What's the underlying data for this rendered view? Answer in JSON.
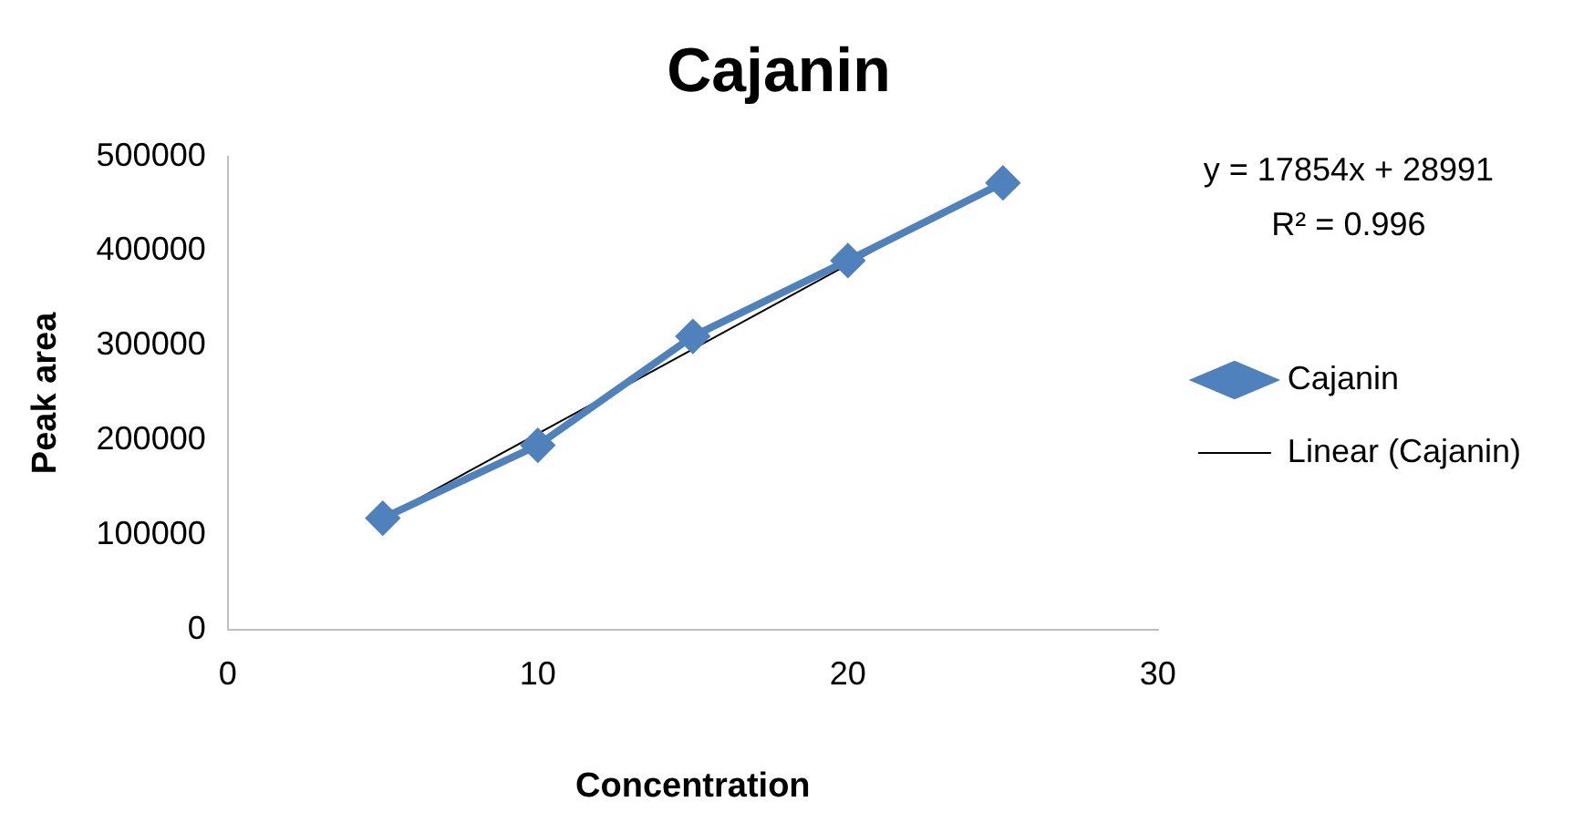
{
  "chart_data": {
    "type": "line",
    "title": "Cajanin",
    "xlabel": "Concentration",
    "ylabel": "Peak area",
    "annotations": [
      "y = 17854x + 28991",
      "R² = 0.996"
    ],
    "x": [
      5,
      10,
      15,
      20,
      25
    ],
    "series": [
      {
        "name": "Cajanin",
        "color": "#4f81bd",
        "values": [
          118000,
          195000,
          310000,
          390000,
          472000
        ],
        "marker": "diamond"
      },
      {
        "name": "Linear (Cajanin)",
        "type": "line",
        "color": "#000000",
        "x": [
          5,
          25
        ],
        "values": [
          118000,
          475000
        ],
        "marker": "none"
      }
    ],
    "xlim": [
      0,
      30
    ],
    "xticks": [
      0,
      10,
      20,
      30
    ],
    "ylim": [
      0,
      500000
    ],
    "yticks": [
      0,
      100000,
      200000,
      300000,
      400000,
      500000
    ],
    "grid": false,
    "legend": "right"
  }
}
